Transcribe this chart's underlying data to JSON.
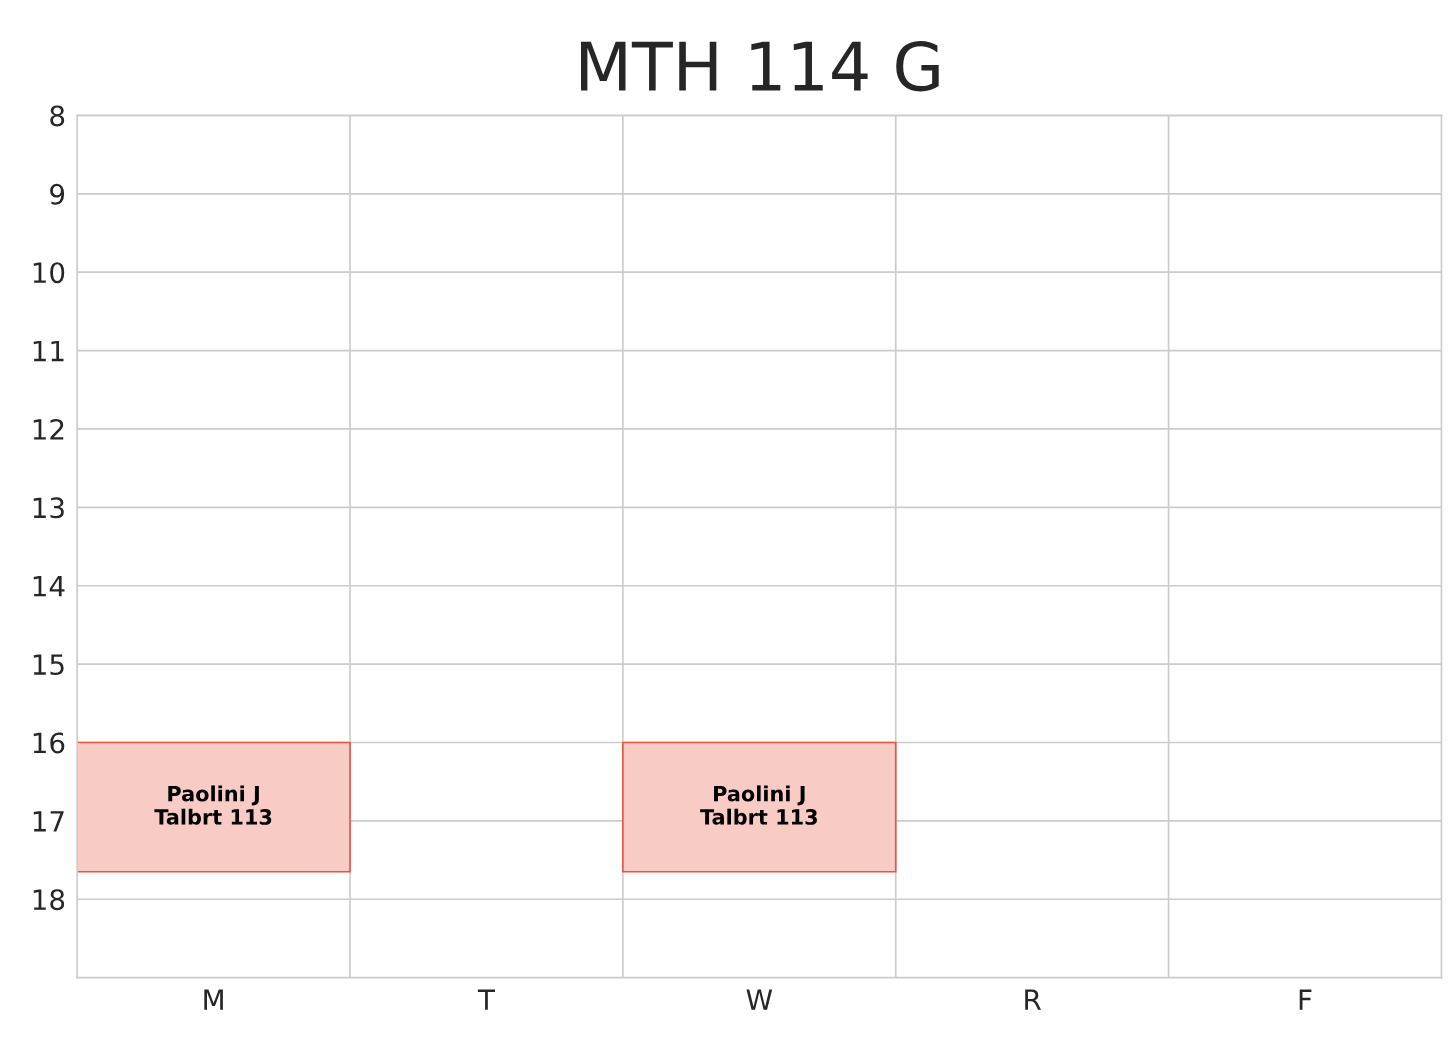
{
  "chart_data": {
    "type": "bar",
    "title": "MTH 114 G",
    "categories": [
      "M",
      "T",
      "W",
      "R",
      "F"
    ],
    "series": [
      {
        "color": "#f8cbc4",
        "values": [
          1.65,
          null,
          1.65,
          null,
          null
        ],
        "base": [
          16,
          null,
          16,
          null,
          null
        ],
        "value_labels": [
          "Paolini J\nTalbrt 113",
          null,
          "Paolini J\nTalbrt 113",
          null,
          null
        ]
      }
    ],
    "ylim": [
      19,
      8
    ],
    "yticks": [
      8,
      9,
      10,
      11,
      12,
      13,
      14,
      15,
      16,
      17,
      18
    ],
    "grid": true
  }
}
